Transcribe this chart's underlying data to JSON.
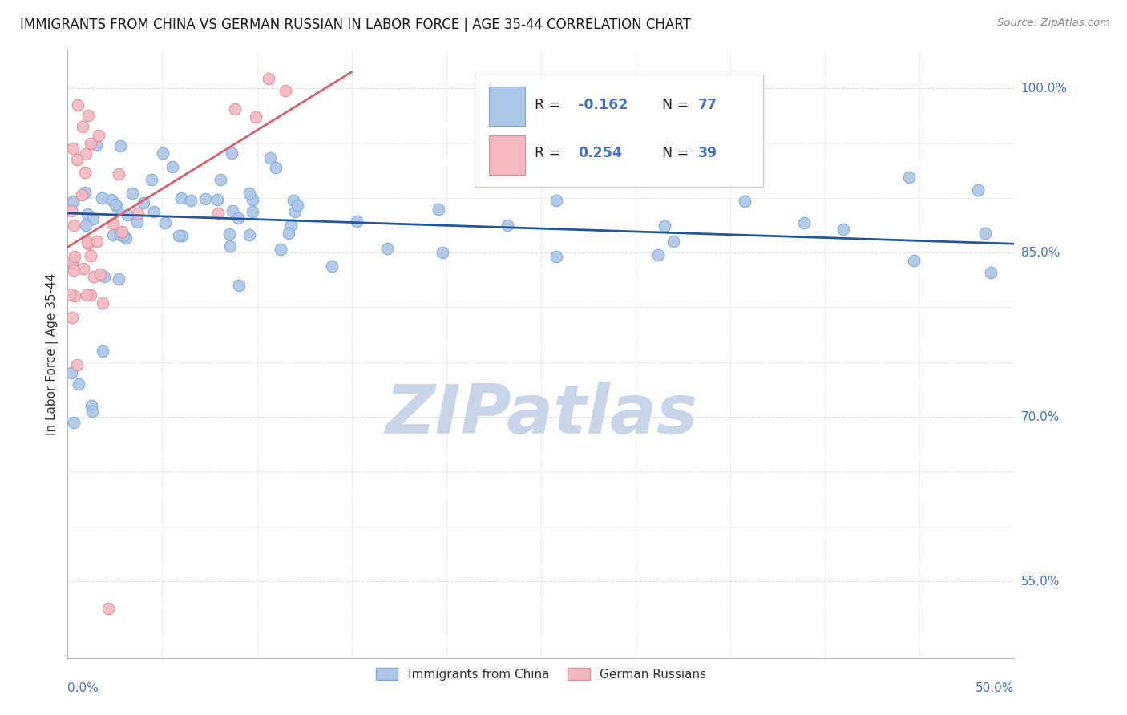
{
  "title": "IMMIGRANTS FROM CHINA VS GERMAN RUSSIAN IN LABOR FORCE | AGE 35-44 CORRELATION CHART",
  "source": "Source: ZipAtlas.com",
  "ylabel": "In Labor Force | Age 35-44",
  "xlim": [
    0.0,
    0.5
  ],
  "ylim": [
    0.48,
    1.035
  ],
  "yticks_shown": [
    0.55,
    0.7,
    0.85,
    1.0
  ],
  "ytick_labels_shown": [
    "55.0%",
    "70.0%",
    "85.0%",
    "100.0%"
  ],
  "legend_blue_label": "Immigrants from China",
  "legend_pink_label": "German Russians",
  "r_blue": -0.162,
  "n_blue": 77,
  "r_pink": 0.254,
  "n_pink": 39,
  "title_color": "#1a1a1a",
  "source_color": "#888888",
  "blue_dot_color": "#aec6e8",
  "blue_dot_edge": "#7aa8d8",
  "pink_dot_color": "#f4b8c1",
  "pink_dot_edge": "#e48898",
  "blue_line_color": "#2255a0",
  "pink_line_color": "#d96070",
  "axis_label_color": "#4472c4",
  "ylabel_color": "#333333",
  "watermark_color": "#c8d4e8",
  "grid_color": "#dddddd",
  "legend_box_color": "#f0f0f0",
  "legend_border_color": "#cccccc",
  "blue_line_x": [
    0.0,
    0.5
  ],
  "blue_line_y": [
    0.886,
    0.858
  ],
  "pink_line_x": [
    0.0,
    0.15
  ],
  "pink_line_y": [
    0.855,
    1.015
  ]
}
